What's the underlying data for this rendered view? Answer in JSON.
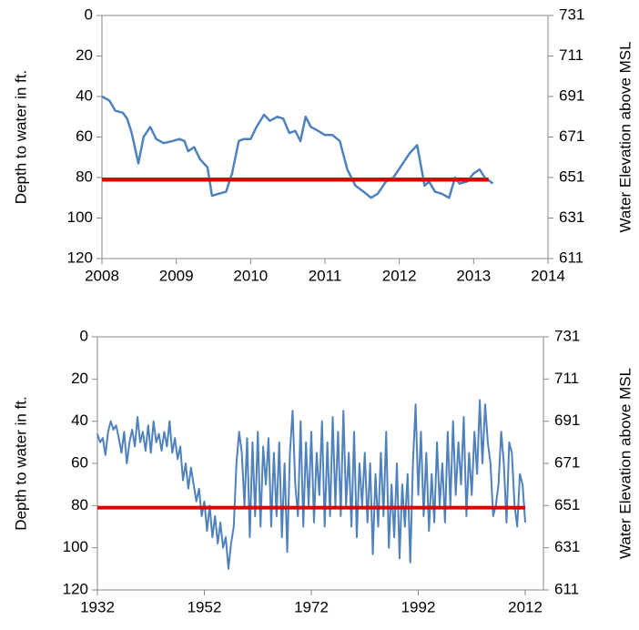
{
  "chart_data": [
    {
      "type": "line",
      "ylabel": "Depth to water in ft.",
      "y2label": "Water Elevation above MSL",
      "xlim": [
        2008,
        2014
      ],
      "xticks": [
        2008,
        2009,
        2010,
        2011,
        2012,
        2013,
        2014
      ],
      "ylim": [
        120,
        0
      ],
      "yticks": [
        0,
        20,
        40,
        60,
        80,
        100,
        120
      ],
      "y2lim": [
        611,
        731
      ],
      "y2ticks": [
        731,
        711,
        691,
        671,
        651,
        631,
        611
      ],
      "grid": false,
      "series": [
        {
          "color": "#4f81bd",
          "width": 2.5,
          "x": [
            2008.0,
            2008.1,
            2008.18,
            2008.28,
            2008.34,
            2008.4,
            2008.49,
            2008.56,
            2008.65,
            2008.73,
            2008.83,
            2008.95,
            2009.04,
            2009.11,
            2009.16,
            2009.24,
            2009.32,
            2009.42,
            2009.48,
            2009.57,
            2009.67,
            2009.75,
            2009.84,
            2009.91,
            2010.0,
            2010.08,
            2010.18,
            2010.26,
            2010.36,
            2010.44,
            2010.52,
            2010.6,
            2010.67,
            2010.74,
            2010.81,
            2010.91,
            2011.0,
            2011.1,
            2011.2,
            2011.3,
            2011.41,
            2011.52,
            2011.62,
            2011.71,
            2011.82,
            2011.92,
            2012.03,
            2012.14,
            2012.24,
            2012.34,
            2012.4,
            2012.48,
            2012.57,
            2012.67,
            2012.75,
            2012.81,
            2012.91,
            2013.0,
            2013.08,
            2013.15,
            2013.26
          ],
          "values": [
            40,
            42,
            47,
            48,
            51,
            58,
            73,
            60,
            55,
            61,
            63,
            62,
            61,
            62,
            67,
            65,
            71,
            75,
            89,
            88,
            87,
            78,
            62,
            61,
            61,
            55,
            49,
            52,
            50,
            51,
            58,
            57,
            62,
            50,
            55,
            57,
            59,
            59,
            62,
            76,
            84,
            87,
            90,
            88,
            82,
            80,
            74,
            68,
            64,
            84,
            82,
            87,
            88,
            90,
            80,
            83,
            82,
            78,
            76,
            80,
            83
          ]
        },
        {
          "color": "#e00000",
          "width": 4.5,
          "x": [
            2008,
            2013.2
          ],
          "values": [
            81,
            81
          ]
        }
      ]
    },
    {
      "type": "line",
      "ylabel": "Depth to water in ft.",
      "y2label": "Water Elevation above MSL",
      "xlim": [
        1932,
        2015.4
      ],
      "xticks": [
        1932,
        1952,
        1972,
        1992,
        2012
      ],
      "ylim": [
        120,
        0
      ],
      "yticks": [
        0,
        20,
        40,
        60,
        80,
        100,
        120
      ],
      "y2lim": [
        611,
        731
      ],
      "y2ticks": [
        731,
        711,
        691,
        671,
        651,
        631,
        611
      ],
      "grid": false,
      "series": [
        {
          "color": "#4f81bd",
          "width": 2,
          "x": [
            1932,
            1932.5,
            1933,
            1933.5,
            1934,
            1934.5,
            1935,
            1935.5,
            1936,
            1936.5,
            1937,
            1937.5,
            1938,
            1938.5,
            1939,
            1939.5,
            1940,
            1940.5,
            1941,
            1941.5,
            1942,
            1942.5,
            1943,
            1943.5,
            1944,
            1944.5,
            1945,
            1945.5,
            1946,
            1946.5,
            1947,
            1947.5,
            1948,
            1948.5,
            1949,
            1949.5,
            1950,
            1950.5,
            1951,
            1951.5,
            1952,
            1952.5,
            1953,
            1953.5,
            1954,
            1954.5,
            1955,
            1955.5,
            1956,
            1956.5,
            1957,
            1957.5,
            1958,
            1958.5,
            1959,
            1959.5,
            1960,
            1960.5,
            1961,
            1961.5,
            1962,
            1962.5,
            1963,
            1963.5,
            1964,
            1964.5,
            1965,
            1965.5,
            1966,
            1966.5,
            1967,
            1967.5,
            1968,
            1968.5,
            1969,
            1969.5,
            1970,
            1970.5,
            1971,
            1971.5,
            1972,
            1972.5,
            1973,
            1973.5,
            1974,
            1974.5,
            1975,
            1975.5,
            1976,
            1976.5,
            1977,
            1977.5,
            1978,
            1978.5,
            1979,
            1979.5,
            1980,
            1980.5,
            1981,
            1981.5,
            1982,
            1982.5,
            1983,
            1983.5,
            1984,
            1984.5,
            1985,
            1985.5,
            1986,
            1986.5,
            1987,
            1987.5,
            1988,
            1988.5,
            1989,
            1989.5,
            1990,
            1990.5,
            1991,
            1991.5,
            1992,
            1992.5,
            1993,
            1993.5,
            1994,
            1994.5,
            1995,
            1995.5,
            1996,
            1996.5,
            1997,
            1997.5,
            1998,
            1998.5,
            1999,
            1999.5,
            2000,
            2000.5,
            2001,
            2001.5,
            2002,
            2002.5,
            2003,
            2003.5,
            2004,
            2004.5,
            2005,
            2005.5,
            2006,
            2006.5,
            2007,
            2007.5,
            2008,
            2008.5,
            2009,
            2009.5,
            2010,
            2010.5,
            2011,
            2011.5,
            2012
          ],
          "values": [
            46,
            50,
            48,
            56,
            45,
            40,
            44,
            42,
            48,
            55,
            45,
            60,
            50,
            44,
            52,
            38,
            50,
            45,
            54,
            42,
            55,
            40,
            50,
            46,
            54,
            45,
            52,
            40,
            55,
            48,
            58,
            52,
            68,
            60,
            72,
            62,
            70,
            78,
            72,
            85,
            78,
            92,
            80,
            95,
            85,
            98,
            88,
            100,
            95,
            110,
            98,
            90,
            60,
            45,
            55,
            80,
            48,
            95,
            50,
            85,
            45,
            90,
            52,
            70,
            48,
            90,
            55,
            85,
            50,
            95,
            60,
            102,
            55,
            35,
            70,
            85,
            40,
            90,
            50,
            80,
            45,
            88,
            55,
            75,
            40,
            90,
            50,
            85,
            38,
            80,
            45,
            85,
            35,
            80,
            55,
            90,
            45,
            95,
            60,
            80,
            55,
            88,
            60,
            103,
            65,
            90,
            55,
            85,
            45,
            100,
            70,
            95,
            60,
            105,
            70,
            90,
            65,
            107,
            60,
            32,
            75,
            45,
            85,
            55,
            92,
            65,
            88,
            50,
            80,
            60,
            88,
            45,
            80,
            40,
            75,
            50,
            70,
            38,
            85,
            55,
            75,
            45,
            65,
            30,
            60,
            32,
            50,
            60,
            85,
            80,
            70,
            45,
            60,
            88,
            50,
            55,
            80,
            90,
            65,
            70,
            88
          ]
        },
        {
          "color": "#e00000",
          "width": 4,
          "x": [
            1932,
            2012
          ],
          "values": [
            81,
            81
          ]
        }
      ]
    }
  ]
}
